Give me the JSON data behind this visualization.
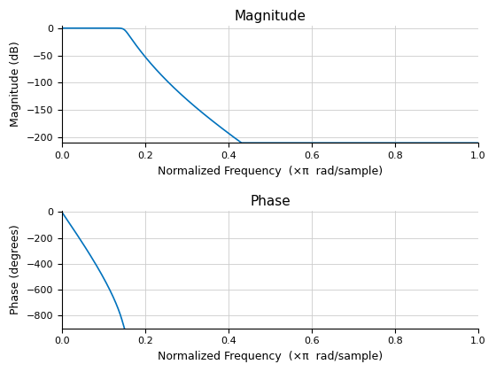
{
  "title_mag": "Magnitude",
  "title_phase": "Phase",
  "xlabel": "Normalized Frequency  (×π  rad/sample)",
  "ylabel_mag": "Magnitude (dB)",
  "ylabel_phase": "Phase (degrees)",
  "xlim": [
    0,
    1
  ],
  "ylim_mag": [
    -210,
    5
  ],
  "ylim_phase": [
    -900,
    10
  ],
  "yticks_mag": [
    0,
    -50,
    -100,
    -150,
    -200
  ],
  "yticks_phase": [
    0,
    -200,
    -400,
    -600,
    -800
  ],
  "xticks": [
    0,
    0.2,
    0.4,
    0.6,
    0.8,
    1.0
  ],
  "line_color": "#0072BD",
  "line_width": 1.2,
  "bg_color": "#FFFFFF",
  "grid_color": "#CCCCCC",
  "butter_order": 20,
  "butter_cutoff": 0.15
}
